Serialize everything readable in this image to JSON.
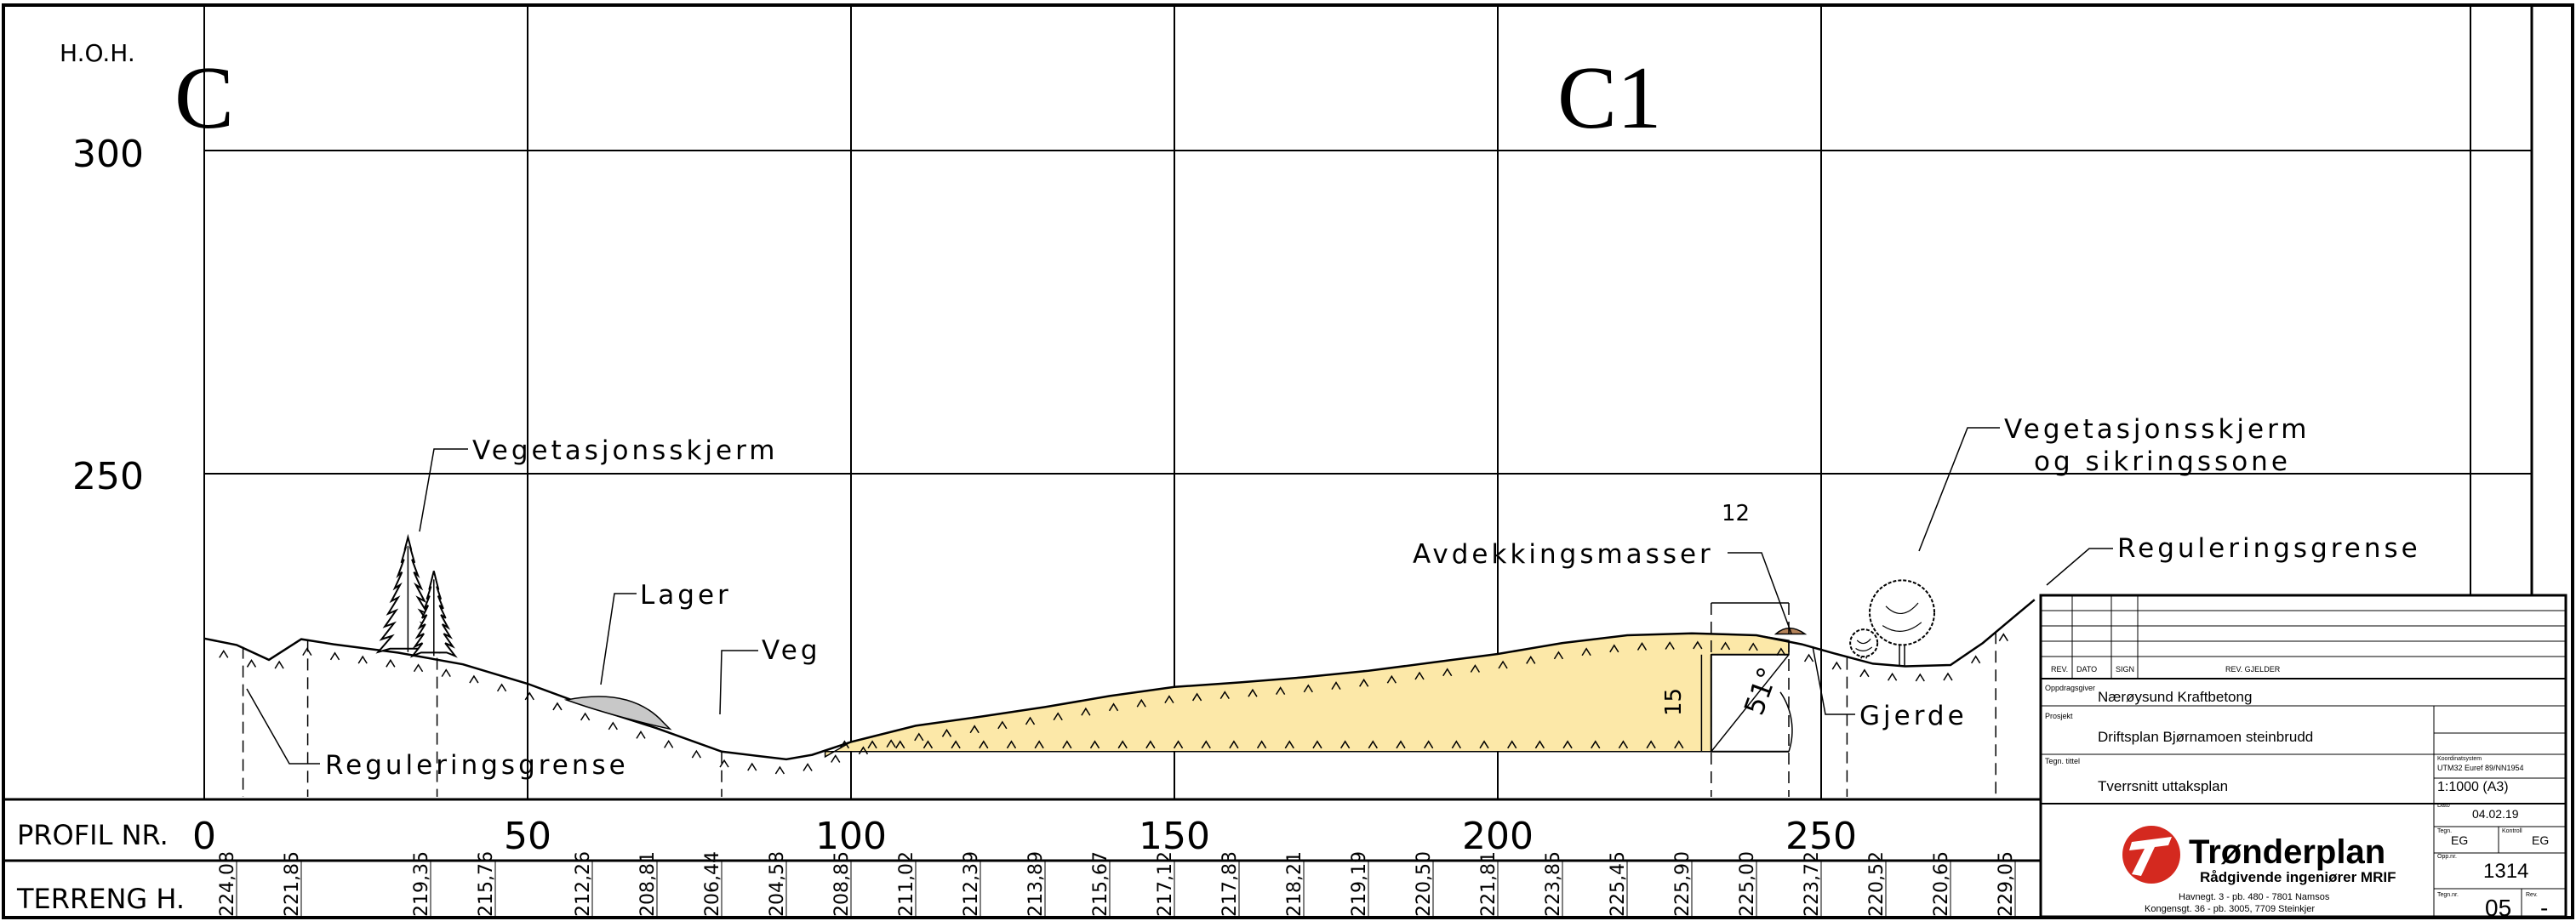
{
  "section_labels": {
    "start": "C",
    "end": "C1"
  },
  "axis": {
    "ylabel": "H.O.H.",
    "y_ticks": [
      {
        "value": 300,
        "label": "300"
      },
      {
        "value": 250,
        "label": "250"
      }
    ],
    "x_ticks": [
      {
        "value": 0,
        "label": "0"
      },
      {
        "value": 50,
        "label": "50"
      },
      {
        "value": 100,
        "label": "100"
      },
      {
        "value": 150,
        "label": "150"
      },
      {
        "value": 200,
        "label": "200"
      },
      {
        "value": 250,
        "label": "250"
      }
    ]
  },
  "rows": {
    "profile_label": "PROFIL NR.",
    "terrain_label": "TERRENG H."
  },
  "terrain_heights": [
    {
      "x": 5,
      "label": "224,08"
    },
    {
      "x": 15,
      "label": "221,85"
    },
    {
      "x": 35,
      "label": "219,35"
    },
    {
      "x": 45,
      "label": "215,76"
    },
    {
      "x": 60,
      "label": "212,26"
    },
    {
      "x": 70,
      "label": "208,81"
    },
    {
      "x": 80,
      "label": "206,44"
    },
    {
      "x": 90,
      "label": "204,58"
    },
    {
      "x": 100,
      "label": "208,85"
    },
    {
      "x": 110,
      "label": "211,02"
    },
    {
      "x": 120,
      "label": "212,39"
    },
    {
      "x": 130,
      "label": "213,89"
    },
    {
      "x": 140,
      "label": "215,67"
    },
    {
      "x": 150,
      "label": "217,12"
    },
    {
      "x": 160,
      "label": "217,83"
    },
    {
      "x": 170,
      "label": "218,21"
    },
    {
      "x": 180,
      "label": "219,19"
    },
    {
      "x": 190,
      "label": "220,50"
    },
    {
      "x": 200,
      "label": "221,81"
    },
    {
      "x": 210,
      "label": "223,85"
    },
    {
      "x": 220,
      "label": "225,45"
    },
    {
      "x": 230,
      "label": "225,90"
    },
    {
      "x": 240,
      "label": "225,00"
    },
    {
      "x": 250,
      "label": "223,72"
    },
    {
      "x": 260,
      "label": "220,52"
    },
    {
      "x": 270,
      "label": "220,65"
    },
    {
      "x": 280,
      "label": "229,05"
    }
  ],
  "annotations": {
    "veg_skjerm_left": "Vegetasjonsskjerm",
    "lager": "Lager",
    "veg": "Veg",
    "reg_left": "Reguleringsgrense",
    "avdekking": "Avdekkingsmasser",
    "dim_width": "12",
    "dim_height": "15",
    "angle": "51°",
    "gjerde": "Gjerde",
    "veg_skjerm_right_1": "Vegetasjonsskjerm",
    "veg_skjerm_right_2": "og sikringssone",
    "reg_right": "Reguleringsgrense"
  },
  "title_block": {
    "rev_headers": [
      "REV.",
      "DATO",
      "SIGN",
      "REV. GJELDER"
    ],
    "oppdragsgiver_label": "Oppdragsgiver",
    "oppdragsgiver": "Nærøysund Kraftbetong",
    "prosjekt_label": "Prosjekt",
    "prosjekt": "Driftsplan Bjørnamoen steinbrudd",
    "tegn_tittel_label": "Tegn. tittel",
    "tegn_tittel": "Tverrsnitt uttaksplan",
    "koord_label": "Koordinatsystem",
    "koord": "UTM32 Euref 89/NN1954",
    "scale": "1:1000 (A3)",
    "dato_label": "Dato",
    "dato": "04.02.19",
    "tegn_label": "Tegn.",
    "tegn": "EG",
    "kontroll_label": "Kontroll",
    "kontroll": "EG",
    "oppdr_nr_label": "Opp.nr.",
    "oppdr_nr": "1314",
    "tegn_nr_label": "Tegn.nr.",
    "tegn_nr": "05",
    "rev_label": "Rev.",
    "rev": "-",
    "company": "Trønderplan",
    "company_sub": "Rådgivende ingeniører MRIF",
    "address_1": "Havnegt. 3 - pb. 480 - 7801 Namsos",
    "address_2": "Kongensgt. 36 - pb. 3005, 7709 Steinkjer"
  },
  "colors": {
    "fill_area": "#fce8a8",
    "lager_fill": "#c8c8c8",
    "logo_red": "#d4291f",
    "mound_fill": "#b5835a"
  }
}
